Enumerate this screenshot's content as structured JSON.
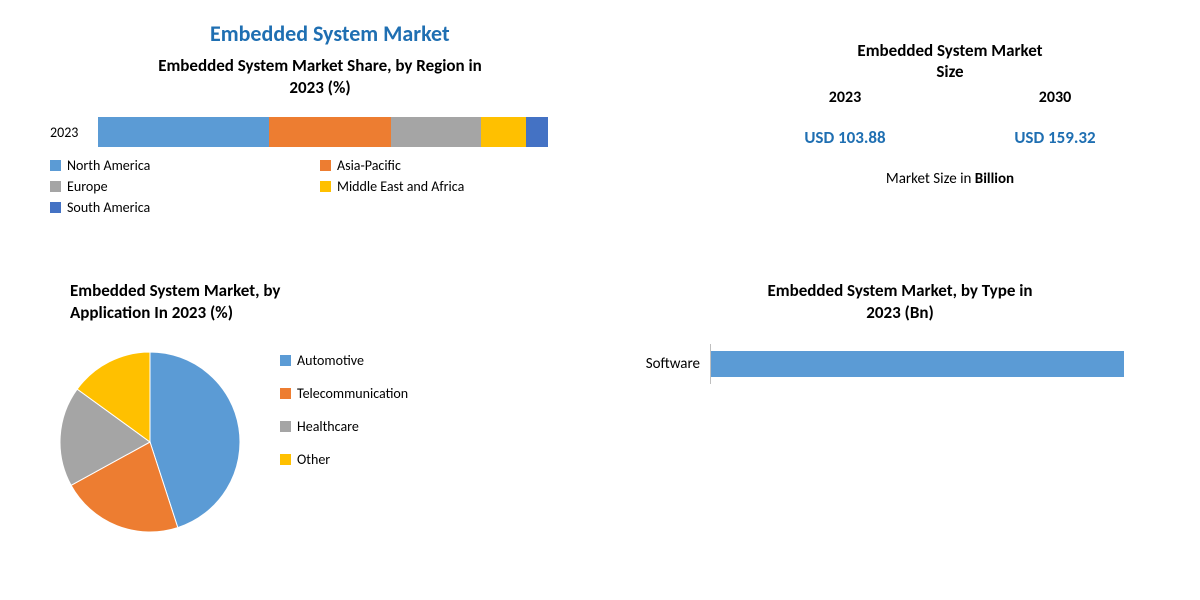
{
  "main_title": "Embedded System Market",
  "region": {
    "title_l1": "Embedded System Market Share, by Region in",
    "title_l2": "2023 (%)",
    "year_label": "2023",
    "segments": [
      {
        "label": "North America",
        "value": 38,
        "color": "#5b9bd5"
      },
      {
        "label": "Asia-Pacific",
        "value": 27,
        "color": "#ed7d31"
      },
      {
        "label": "Europe",
        "value": 20,
        "color": "#a5a5a5"
      },
      {
        "label": "Middle East and Africa",
        "value": 10,
        "color": "#ffc000"
      },
      {
        "label": "South America",
        "value": 5,
        "color": "#4472c4"
      }
    ]
  },
  "application": {
    "title_l1": "Embedded System Market, by",
    "title_l2": "Application In 2023 (%)",
    "slices": [
      {
        "label": "Automotive",
        "value": 45,
        "color": "#5b9bd5"
      },
      {
        "label": "Telecommunication",
        "value": 22,
        "color": "#ed7d31"
      },
      {
        "label": "Healthcare",
        "value": 18,
        "color": "#a5a5a5"
      },
      {
        "label": "Other",
        "value": 15,
        "color": "#ffc000"
      }
    ]
  },
  "size": {
    "title_l1": "Embedded System Market",
    "title_l2": "Size",
    "year_2023": "2023",
    "year_2030": "2030",
    "value_2023": "USD 103.88",
    "value_2030": "USD 159.32",
    "caption_prefix": "Market Size in ",
    "caption_bold": "Billion"
  },
  "type": {
    "title_l1": "Embedded System Market, by Type in",
    "title_l2": "2023 (Bn)",
    "categories": [
      {
        "label": "Software",
        "value": 88,
        "color": "#5b9bd5"
      }
    ],
    "x_max": 100,
    "axis_color": "#bfbfbf"
  },
  "colors": {
    "title_blue": "#1f6fb2",
    "text": "#000000",
    "background": "#ffffff"
  },
  "fonts": {
    "title_size_pt": 17,
    "main_title_size_pt": 22,
    "body_size_pt": 14
  }
}
